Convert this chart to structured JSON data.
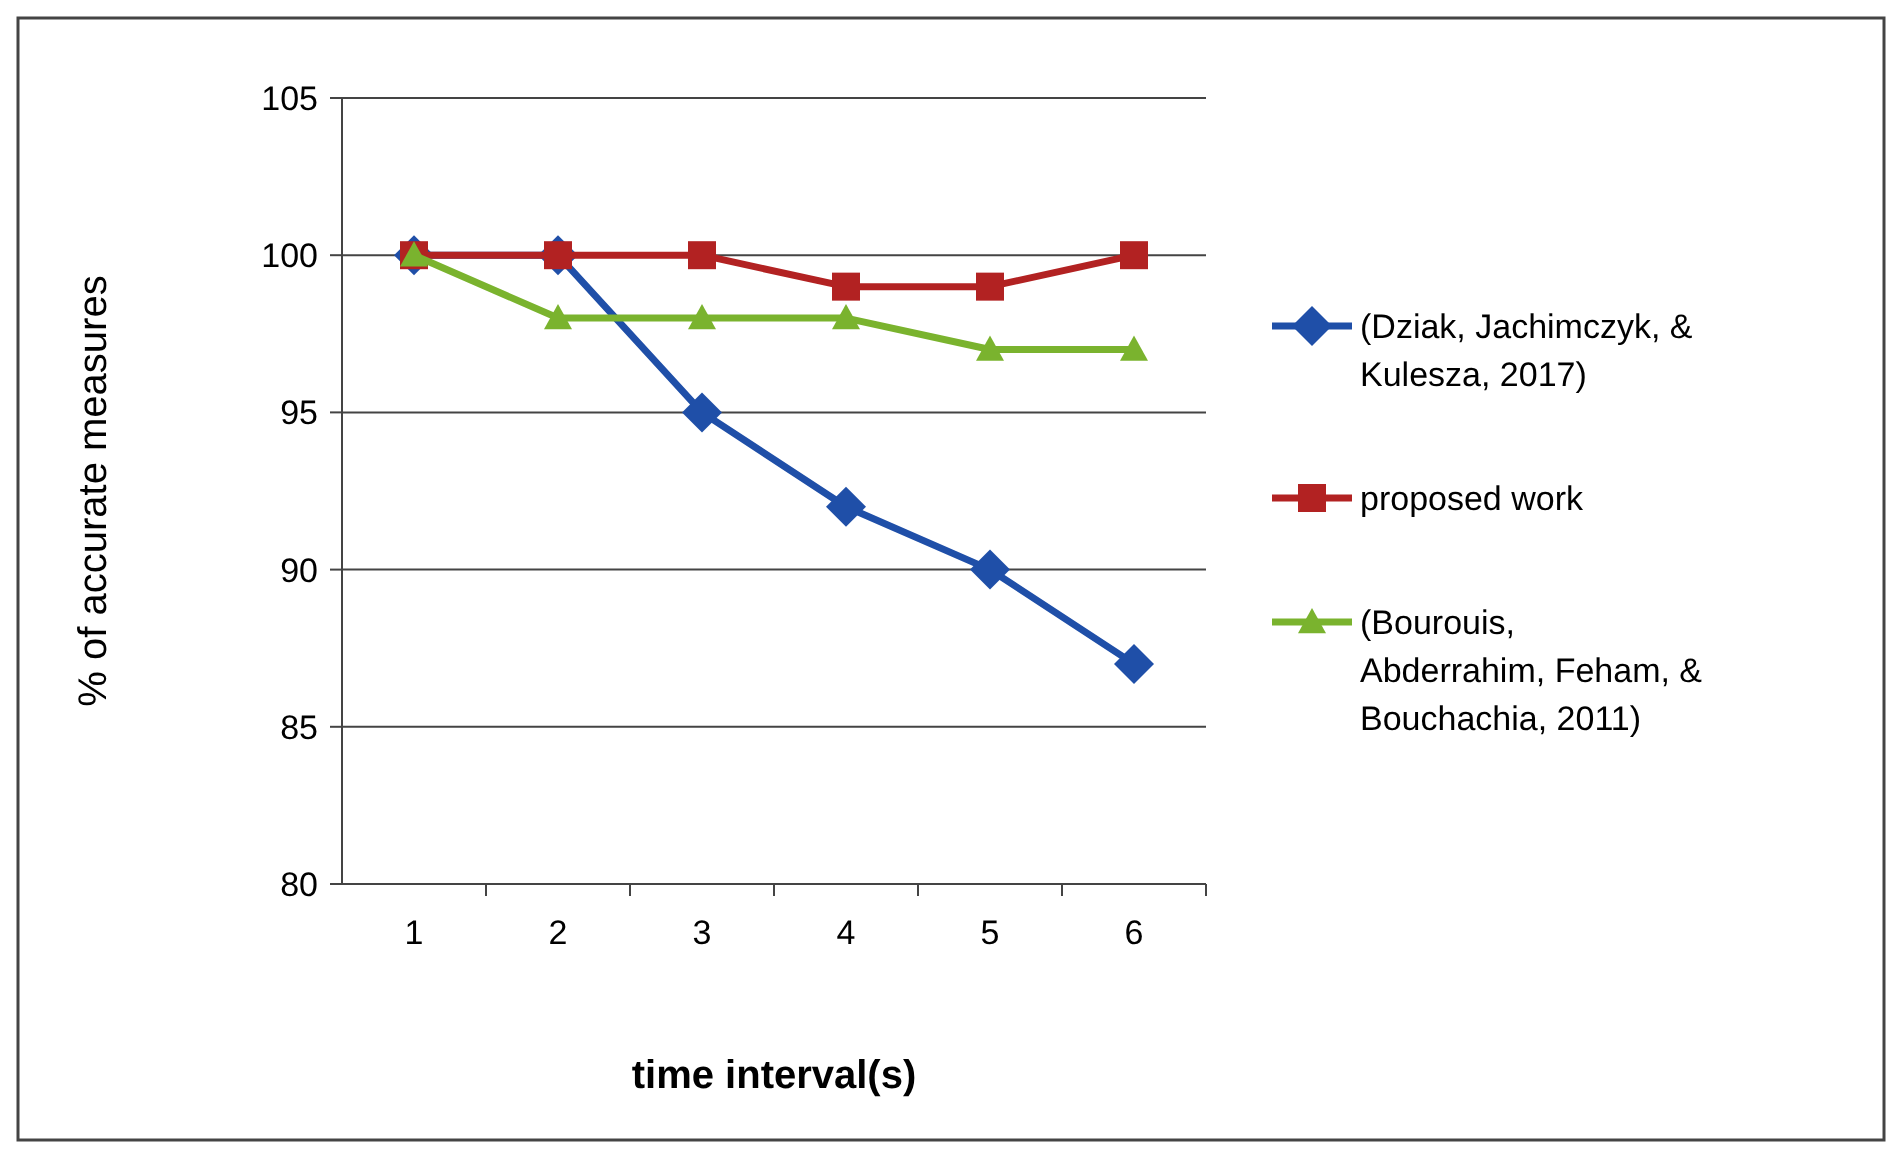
{
  "chart_data": {
    "type": "line",
    "xlabel": "time interval(s)",
    "ylabel": "% of accurate measures",
    "categories": [
      "1",
      "2",
      "3",
      "4",
      "5",
      "6"
    ],
    "ylim": [
      80,
      105
    ],
    "yticks": [
      80,
      85,
      90,
      95,
      100,
      105
    ],
    "grid": "y",
    "legend": "right",
    "series": [
      {
        "name": "(Dziak, Jachimczyk, & Kulesza, 2017)",
        "color": "#1f4fa8",
        "marker": "diamond",
        "values": [
          100,
          100,
          95,
          92,
          90,
          87
        ]
      },
      {
        "name": "proposed work",
        "color": "#b22222",
        "marker": "square",
        "values": [
          100,
          100,
          100,
          99,
          99,
          100
        ]
      },
      {
        "name": "(Bourouis, Abderrahim, Feham, & Bouchachia, 2011)",
        "color": "#7ab32e",
        "marker": "triangle",
        "values": [
          100,
          98,
          98,
          98,
          97,
          97
        ]
      }
    ]
  }
}
